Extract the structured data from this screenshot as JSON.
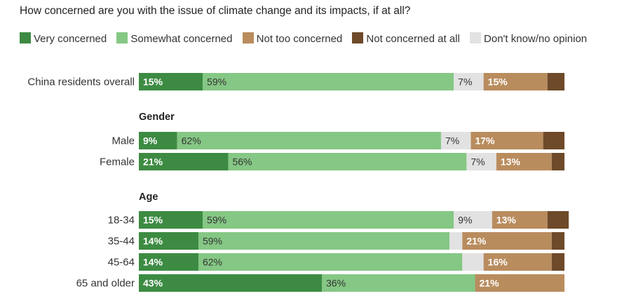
{
  "question": "How concerned are you with the issue of climate change and its impacts, if at all?",
  "legend": [
    {
      "label": "Very concerned",
      "color": "#3d8b43"
    },
    {
      "label": "Somewhat concerned",
      "color": "#85c785"
    },
    {
      "label": "Not too concerned",
      "color": "#b98c5e"
    },
    {
      "label": "Not concerned at all",
      "color": "#6e4a2a"
    },
    {
      "label": "Don't know/no opinion",
      "color": "#e2e2e2"
    }
  ],
  "chart_data": {
    "type": "bar",
    "orientation": "horizontal",
    "stacked": true,
    "title": "How concerned are you with the issue of climate change and its impacts, if at all?",
    "series_order": [
      "Very concerned",
      "Somewhat concerned",
      "Don't know/no opinion",
      "Not too concerned",
      "Not concerned at all"
    ],
    "groups": [
      {
        "title": "",
        "rows": [
          {
            "label": "China residents overall",
            "values": [
              15,
              59,
              7,
              15,
              4
            ],
            "labels": [
              "15%",
              "59%",
              "7%",
              "15%",
              ""
            ]
          }
        ]
      },
      {
        "title": "Gender",
        "rows": [
          {
            "label": "Male",
            "values": [
              9,
              62,
              7,
              17,
              5
            ],
            "labels": [
              "9%",
              "62%",
              "7%",
              "17%",
              ""
            ]
          },
          {
            "label": "Female",
            "values": [
              21,
              56,
              7,
              13,
              3
            ],
            "labels": [
              "21%",
              "56%",
              "7%",
              "13%",
              ""
            ]
          }
        ]
      },
      {
        "title": "Age",
        "rows": [
          {
            "label": "18-34",
            "values": [
              15,
              59,
              9,
              13,
              5
            ],
            "labels": [
              "15%",
              "59%",
              "9%",
              "13%",
              ""
            ]
          },
          {
            "label": "35-44",
            "values": [
              14,
              59,
              3,
              21,
              3
            ],
            "labels": [
              "14%",
              "59%",
              "",
              "21%",
              ""
            ]
          },
          {
            "label": "45-64",
            "values": [
              14,
              62,
              5,
              16,
              3
            ],
            "labels": [
              "14%",
              "62%",
              "",
              "16%",
              ""
            ]
          },
          {
            "label": "65 and older",
            "values": [
              43,
              36,
              0,
              21,
              0
            ],
            "labels": [
              "43%",
              "36%",
              "",
              "21%",
              ""
            ]
          }
        ]
      }
    ],
    "segment_colors": [
      "#3d8b43",
      "#85c785",
      "#e2e2e2",
      "#b98c5e",
      "#6e4a2a"
    ],
    "label_colors": [
      "#ffffff",
      "#333333",
      "#333333",
      "#ffffff",
      "#ffffff"
    ],
    "label_bold": [
      true,
      false,
      false,
      true,
      true
    ],
    "xlim": [
      0,
      100
    ],
    "grid": false
  }
}
